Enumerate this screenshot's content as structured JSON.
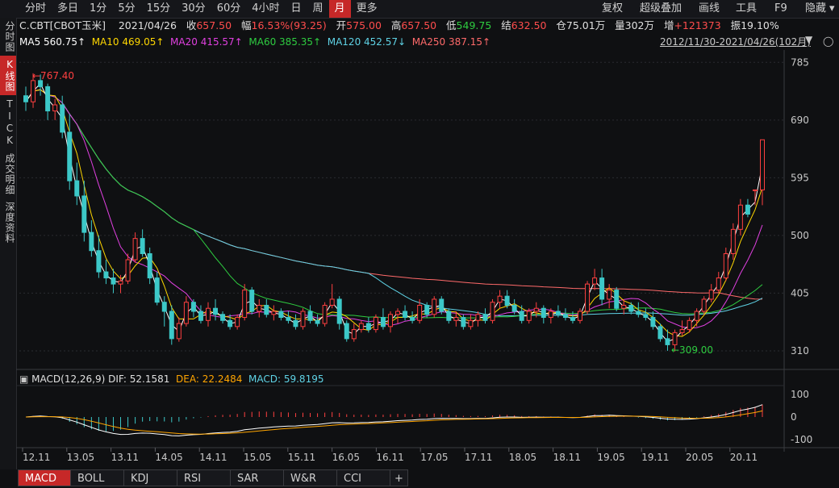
{
  "toolbar": {
    "timeframes": [
      "分时",
      "多日",
      "1分",
      "5分",
      "15分",
      "30分",
      "60分",
      "4小时",
      "日",
      "周",
      "月",
      "更多"
    ],
    "active": "月",
    "right": {
      "fuquan": "复权",
      "overlay": "超级叠加",
      "draw": "画线",
      "tools": "工具",
      "f9": "F9",
      "hide": "隐藏"
    }
  },
  "sidebar": {
    "items": [
      "分时图",
      "K线图",
      "TICK",
      "成交明细",
      "深度资料"
    ],
    "active": "K线图"
  },
  "info": {
    "symbol": "C.CBT[CBOT玉米]",
    "date": "2021/04/26",
    "close_label": "收",
    "close": "657.50",
    "range_label": "幅",
    "range": "16.53%(93.25)",
    "open_label": "开",
    "open": "575.00",
    "high_label": "高",
    "high": "657.50",
    "low_label": "低",
    "low": "549.75",
    "settle_label": "结",
    "settle": "632.50",
    "oi_label": "仓",
    "oi": "75.01万",
    "vol_label": "量",
    "vol": "302万",
    "inc_label": "增",
    "inc": "+121373",
    "amp_label": "振",
    "amp": "19.10%"
  },
  "ma": {
    "ma5": "MA5 560.75↑",
    "ma10": "MA10 469.05↑",
    "ma20": "MA20 415.57↑",
    "ma60": "MA60 385.35↑",
    "ma120": "MA120 452.57↓",
    "ma250": "MA250 387.15↑"
  },
  "range_text": "2012/11/30-2021/04/26(102月)",
  "colors": {
    "up": "#ff4040",
    "down": "#3cc8c8",
    "ma5": "#ffffff",
    "ma10": "#ffd700",
    "ma20": "#e040e0",
    "ma60": "#2ecc40",
    "ma120": "#5fd3e6",
    "ma250": "#ff6a6a",
    "dea": "#ffa500"
  },
  "chart_data": {
    "type": "candlestick",
    "price_axis": {
      "ticks": [
        785,
        690,
        595,
        500,
        405,
        310
      ],
      "range": [
        290,
        800
      ]
    },
    "x_ticks": [
      "12.11",
      "13.05",
      "13.11",
      "14.05",
      "14.11",
      "15.05",
      "15.11",
      "16.05",
      "16.11",
      "17.05",
      "17.11",
      "18.05",
      "18.11",
      "19.05",
      "19.11",
      "20.05",
      "20.11"
    ],
    "annotations": {
      "high": "767.40",
      "low": "309.00"
    },
    "candles": [
      [
        730,
        745,
        705,
        720
      ],
      [
        720,
        767,
        710,
        755
      ],
      [
        755,
        765,
        730,
        745
      ],
      [
        745,
        750,
        690,
        705
      ],
      [
        705,
        725,
        690,
        715
      ],
      [
        715,
        730,
        660,
        670
      ],
      [
        670,
        700,
        575,
        590
      ],
      [
        590,
        620,
        550,
        565
      ],
      [
        565,
        590,
        490,
        505
      ],
      [
        505,
        525,
        465,
        475
      ],
      [
        475,
        500,
        430,
        440
      ],
      [
        440,
        460,
        420,
        430
      ],
      [
        430,
        445,
        405,
        420
      ],
      [
        420,
        435,
        405,
        425
      ],
      [
        425,
        470,
        420,
        460
      ],
      [
        460,
        505,
        455,
        495
      ],
      [
        495,
        510,
        465,
        470
      ],
      [
        470,
        480,
        420,
        430
      ],
      [
        430,
        440,
        385,
        390
      ],
      [
        390,
        400,
        350,
        375
      ],
      [
        375,
        385,
        320,
        330
      ],
      [
        330,
        365,
        325,
        355
      ],
      [
        355,
        400,
        350,
        390
      ],
      [
        390,
        395,
        365,
        375
      ],
      [
        375,
        385,
        355,
        360
      ],
      [
        360,
        390,
        350,
        380
      ],
      [
        380,
        395,
        360,
        370
      ],
      [
        370,
        375,
        355,
        360
      ],
      [
        360,
        370,
        345,
        350
      ],
      [
        350,
        370,
        345,
        365
      ],
      [
        365,
        420,
        360,
        410
      ],
      [
        410,
        415,
        370,
        375
      ],
      [
        375,
        395,
        365,
        385
      ],
      [
        385,
        395,
        365,
        370
      ],
      [
        370,
        385,
        360,
        375
      ],
      [
        375,
        380,
        360,
        365
      ],
      [
        365,
        375,
        355,
        360
      ],
      [
        360,
        370,
        345,
        350
      ],
      [
        350,
        380,
        345,
        375
      ],
      [
        375,
        385,
        355,
        360
      ],
      [
        360,
        370,
        350,
        355
      ],
      [
        355,
        390,
        350,
        385
      ],
      [
        385,
        420,
        380,
        395
      ],
      [
        395,
        400,
        345,
        355
      ],
      [
        355,
        360,
        325,
        330
      ],
      [
        330,
        355,
        325,
        345
      ],
      [
        345,
        360,
        340,
        355
      ],
      [
        355,
        365,
        340,
        345
      ],
      [
        345,
        370,
        340,
        365
      ],
      [
        365,
        380,
        345,
        350
      ],
      [
        350,
        375,
        340,
        370
      ],
      [
        370,
        380,
        355,
        375
      ],
      [
        375,
        385,
        360,
        365
      ],
      [
        365,
        375,
        355,
        360
      ],
      [
        360,
        395,
        355,
        385
      ],
      [
        385,
        390,
        365,
        370
      ],
      [
        370,
        400,
        365,
        395
      ],
      [
        395,
        400,
        370,
        375
      ],
      [
        375,
        380,
        355,
        360
      ],
      [
        360,
        375,
        350,
        365
      ],
      [
        365,
        370,
        345,
        350
      ],
      [
        350,
        370,
        345,
        360
      ],
      [
        360,
        375,
        350,
        370
      ],
      [
        370,
        380,
        355,
        360
      ],
      [
        360,
        395,
        355,
        390
      ],
      [
        390,
        410,
        380,
        400
      ],
      [
        400,
        410,
        380,
        385
      ],
      [
        385,
        395,
        370,
        375
      ],
      [
        375,
        385,
        355,
        360
      ],
      [
        360,
        380,
        355,
        375
      ],
      [
        375,
        390,
        365,
        380
      ],
      [
        380,
        385,
        355,
        365
      ],
      [
        365,
        380,
        355,
        375
      ],
      [
        375,
        385,
        365,
        370
      ],
      [
        370,
        380,
        360,
        365
      ],
      [
        365,
        375,
        355,
        360
      ],
      [
        360,
        380,
        355,
        375
      ],
      [
        375,
        425,
        370,
        420
      ],
      [
        420,
        445,
        410,
        430
      ],
      [
        430,
        445,
        385,
        395
      ],
      [
        395,
        420,
        380,
        410
      ],
      [
        410,
        415,
        375,
        380
      ],
      [
        380,
        395,
        370,
        385
      ],
      [
        385,
        390,
        370,
        375
      ],
      [
        375,
        390,
        365,
        370
      ],
      [
        370,
        380,
        360,
        365
      ],
      [
        365,
        375,
        345,
        350
      ],
      [
        350,
        355,
        325,
        330
      ],
      [
        330,
        345,
        310,
        320
      ],
      [
        320,
        345,
        309,
        340
      ],
      [
        340,
        360,
        335,
        345
      ],
      [
        345,
        365,
        340,
        360
      ],
      [
        360,
        380,
        350,
        375
      ],
      [
        375,
        400,
        370,
        395
      ],
      [
        395,
        420,
        390,
        410
      ],
      [
        410,
        440,
        405,
        430
      ],
      [
        430,
        480,
        425,
        470
      ],
      [
        470,
        520,
        460,
        510
      ],
      [
        510,
        560,
        500,
        550
      ],
      [
        550,
        560,
        530,
        535
      ],
      [
        575,
        575,
        549.75,
        575
      ],
      [
        575,
        657.5,
        549.75,
        657.5
      ]
    ],
    "macd": {
      "label": "MACD(12,26,9)",
      "dif": "52.1581",
      "dea": "22.2484",
      "macd": "59.8195",
      "axis_ticks": [
        100,
        0,
        -100
      ]
    }
  },
  "bottom_tabs": [
    "MACD",
    "BOLL",
    "KDJ",
    "RSI",
    "SAR",
    "W&R",
    "CCI"
  ],
  "active_tab": "MACD",
  "add_tab": "+"
}
